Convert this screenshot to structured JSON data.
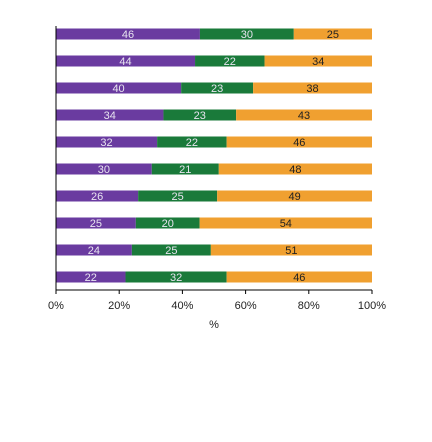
{
  "chart_data": {
    "type": "bar",
    "orientation": "horizontal",
    "stacked": true,
    "percent_stacked": true,
    "categories": [
      "",
      "",
      "",
      "",
      "",
      "",
      "",
      "",
      "",
      ""
    ],
    "series": [
      {
        "color": "#6a3ba0",
        "values": [
          46,
          44,
          40,
          34,
          32,
          30,
          26,
          25,
          24,
          22
        ]
      },
      {
        "color": "#1a7a3a",
        "values": [
          30,
          22,
          23,
          23,
          22,
          21,
          25,
          20,
          25,
          32
        ]
      },
      {
        "color": "#f0a030",
        "values": [
          25,
          34,
          38,
          43,
          46,
          48,
          49,
          54,
          51,
          46
        ]
      }
    ],
    "x_ticks": [
      "0%",
      "20%",
      "40%",
      "60%",
      "80%",
      "100%"
    ],
    "xlim": [
      0,
      100
    ],
    "xlabel": "%",
    "ylabel": "",
    "title": "",
    "grid": false,
    "legend": "none"
  }
}
